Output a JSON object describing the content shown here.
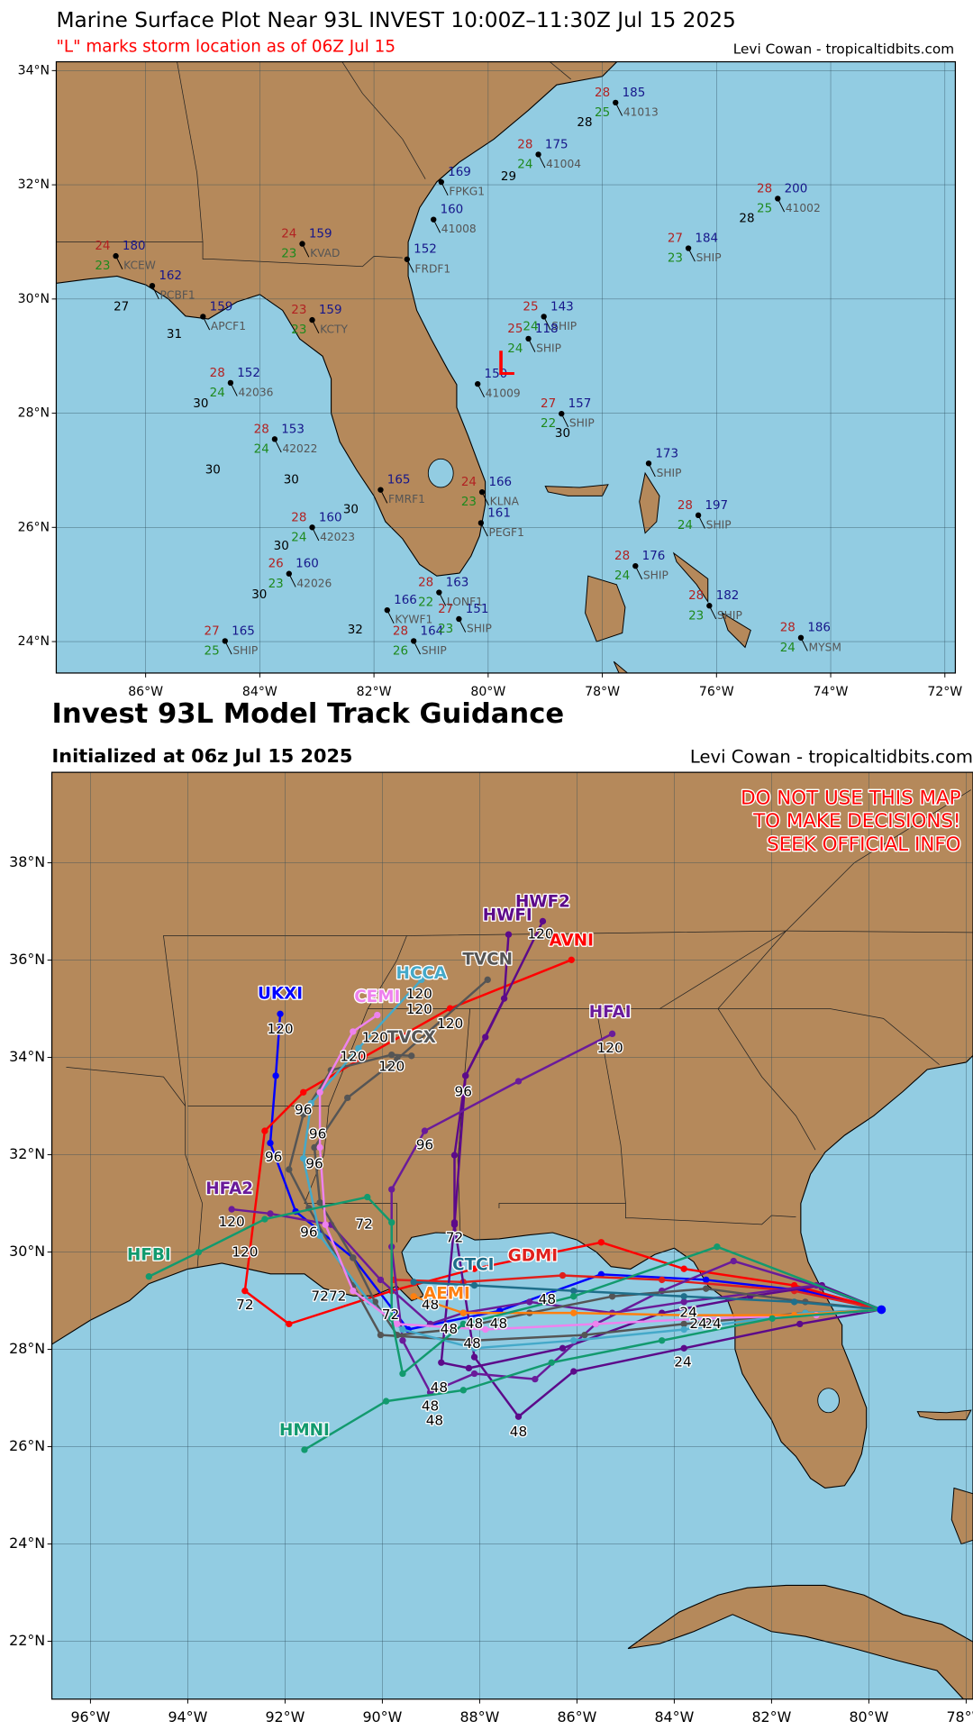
{
  "top_map": {
    "title": "Marine Surface Plot Near 93L INVEST 10:00Z–11:30Z Jul 15 2025",
    "subtitle": "\"L\" marks storm location as of 06Z Jul 15",
    "credit": "Levi Cowan - tropicaltidbits.com",
    "storm_marker": "L",
    "lon_ticks": [
      {
        "value": -86,
        "label": "86°W"
      },
      {
        "value": -84,
        "label": "84°W"
      },
      {
        "value": -82,
        "label": "82°W"
      },
      {
        "value": -80,
        "label": "80°W"
      },
      {
        "value": -78,
        "label": "78°W"
      },
      {
        "value": -76,
        "label": "76°W"
      },
      {
        "value": -74,
        "label": "74°W"
      },
      {
        "value": -72,
        "label": "72°W"
      }
    ],
    "lat_ticks": [
      {
        "value": 24,
        "label": "24°N"
      },
      {
        "value": 26,
        "label": "26°N"
      },
      {
        "value": 28,
        "label": "28°N"
      },
      {
        "value": 30,
        "label": "30°N"
      },
      {
        "value": 32,
        "label": "32°N"
      },
      {
        "value": 34,
        "label": "34°N"
      }
    ],
    "stations": [
      {
        "id": "41013",
        "temp": 28,
        "pres": 185,
        "dew": 25
      },
      {
        "id": "41004",
        "temp": 28,
        "pres": 175,
        "dew": 24
      },
      {
        "id": "41002",
        "temp": 28,
        "pres": 200,
        "dew": 25
      },
      {
        "id": "SHIP",
        "temp": 27,
        "pres": 184,
        "dew": 23
      },
      {
        "id": "SHIP",
        "temp": 25,
        "pres": 143,
        "dew": 24
      },
      {
        "id": "SHIP",
        "temp": 25,
        "pres": 118,
        "dew": 24
      },
      {
        "id": "42036",
        "temp": 28,
        "pres": 152,
        "dew": 24
      },
      {
        "id": "41009",
        "pres": 150
      },
      {
        "id": "SHIP",
        "temp": 27,
        "pres": 157,
        "dew": 22
      },
      {
        "id": "42022",
        "temp": 28,
        "pres": 153,
        "dew": 24
      },
      {
        "id": "SHIP",
        "pres": 173
      },
      {
        "id": "SHIP",
        "temp": 28,
        "pres": 197,
        "dew": 24
      },
      {
        "id": "42023",
        "temp": 28,
        "pres": 160,
        "dew": 24
      },
      {
        "id": "42026",
        "temp": 26,
        "pres": 160,
        "dew": 23
      },
      {
        "id": "SHIP",
        "temp": 28,
        "pres": 176,
        "dew": 24
      },
      {
        "id": "SHIP",
        "temp": 28,
        "pres": 182,
        "dew": 23
      },
      {
        "id": "MYSM",
        "temp": 28,
        "pres": 186,
        "dew": 24
      },
      {
        "id": "SHIP",
        "temp": 27,
        "pres": 165,
        "dew": 25
      },
      {
        "id": "SHIP",
        "temp": 28,
        "pres": 164,
        "dew": 26
      },
      {
        "id": "SHIP",
        "temp": 27,
        "pres": 151,
        "dew": 23
      },
      {
        "id": "KCEW",
        "temp": 24,
        "pres": 180,
        "dew": 23
      },
      {
        "id": "PCBF1",
        "pres": 162
      },
      {
        "id": "APCF1",
        "pres": 159
      },
      {
        "id": "KVAD",
        "temp": 24,
        "pres": 159,
        "dew": 23
      },
      {
        "id": "KLNA",
        "temp": 24,
        "pres": 166,
        "dew": 23
      },
      {
        "id": "PEGF1",
        "pres": 161
      },
      {
        "id": "FMRF1",
        "pres": 165
      },
      {
        "id": "LONF1",
        "temp": 28,
        "pres": 163,
        "dew": 22
      },
      {
        "id": "KYWF1",
        "pres": 166
      },
      {
        "id": "FRDF1",
        "pres": 152
      },
      {
        "id": "41008",
        "pres": 160
      },
      {
        "id": "KCTY",
        "temp": 23,
        "pres": 159,
        "dew": 23
      },
      {
        "id": "FPKG1",
        "pres": 169
      }
    ],
    "sea_values": [
      27,
      31,
      30,
      30,
      30,
      30,
      30,
      30,
      32,
      28,
      28,
      29,
      30
    ]
  },
  "bottom_map": {
    "title": "Invest 93L Model Track Guidance",
    "subtitle": "Initialized at 06z Jul 15 2025",
    "credit": "Levi Cowan - tropicaltidbits.com",
    "warning": [
      "DO NOT USE THIS MAP",
      "TO MAKE DECISIONS!",
      "SEEK OFFICIAL INFO"
    ],
    "lon_ticks": [
      {
        "value": -96,
        "label": "96°W"
      },
      {
        "value": -94,
        "label": "94°W"
      },
      {
        "value": -92,
        "label": "92°W"
      },
      {
        "value": -90,
        "label": "90°W"
      },
      {
        "value": -88,
        "label": "88°W"
      },
      {
        "value": -86,
        "label": "86°W"
      },
      {
        "value": -84,
        "label": "84°W"
      },
      {
        "value": -82,
        "label": "82°W"
      },
      {
        "value": -80,
        "label": "80°W"
      },
      {
        "value": -78,
        "label": "78°W"
      }
    ],
    "lat_ticks": [
      {
        "value": 22,
        "label": "22°N"
      },
      {
        "value": 24,
        "label": "24°N"
      },
      {
        "value": 26,
        "label": "26°N"
      },
      {
        "value": 28,
        "label": "28°N"
      },
      {
        "value": 30,
        "label": "30°N"
      },
      {
        "value": 32,
        "label": "32°N"
      },
      {
        "value": 34,
        "label": "34°N"
      },
      {
        "value": 36,
        "label": "36°N"
      },
      {
        "value": 38,
        "label": "38°N"
      }
    ],
    "models": [
      {
        "name": "UKXI",
        "color": "#0000ff"
      },
      {
        "name": "AVNI",
        "color": "#ff0000"
      },
      {
        "name": "GDMI",
        "color": "#e0201c"
      },
      {
        "name": "HWFI",
        "color": "#5c0a8a"
      },
      {
        "name": "HWF2",
        "color": "#5c0a8a"
      },
      {
        "name": "HFAI",
        "color": "#6a1b9a"
      },
      {
        "name": "HFA2",
        "color": "#6a1b9a"
      },
      {
        "name": "TVCN",
        "color": "#555555"
      },
      {
        "name": "TVCX",
        "color": "#555555"
      },
      {
        "name": "HCCA",
        "color": "#45a9c9"
      },
      {
        "name": "CEMI",
        "color": "#ee82ee"
      },
      {
        "name": "CTCI",
        "color": "#1f6f8b"
      },
      {
        "name": "AEMI",
        "color": "#ff7f0e"
      },
      {
        "name": "HFBI",
        "color": "#129a6e"
      },
      {
        "name": "HMNI",
        "color": "#129a6e"
      }
    ],
    "hour_labels": [
      120,
      120,
      120,
      120,
      120,
      120,
      120,
      120,
      120,
      120,
      120,
      96,
      96,
      96,
      96,
      96,
      96,
      96,
      72,
      72,
      72,
      72,
      72,
      72,
      48,
      48,
      48,
      48,
      48,
      48,
      48,
      48,
      48,
      48,
      24,
      24,
      24,
      24
    ]
  }
}
